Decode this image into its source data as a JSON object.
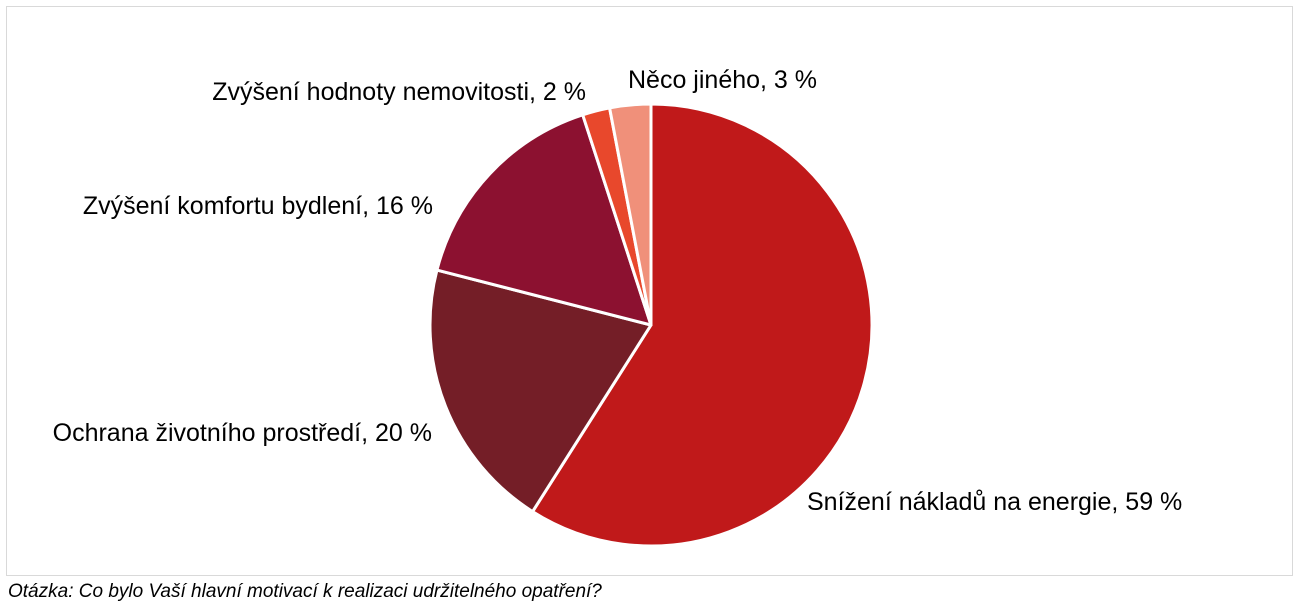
{
  "chart_data": {
    "type": "pie",
    "title": "",
    "start_angle_deg": 0,
    "direction": "clockwise",
    "slices": [
      {
        "label": "Snížení nákladů na energie, 59 %",
        "value": 59,
        "color": "#c0191a"
      },
      {
        "label": "Ochrana životního prostředí, 20 %",
        "value": 20,
        "color": "#741e27"
      },
      {
        "label": "Zvýšení komfortu bydlení, 16 %",
        "value": 16,
        "color": "#8c1130"
      },
      {
        "label": "Zvýšení hodnoty nemovitosti, 2 %",
        "value": 2,
        "color": "#e8482c"
      },
      {
        "label": "Něco jiného, 3 %",
        "value": 3,
        "color": "#f0907a"
      }
    ]
  },
  "footnote": "Otázka: Co bylo Vaší hlavní motivací k realizaci udržitelného opatření?"
}
